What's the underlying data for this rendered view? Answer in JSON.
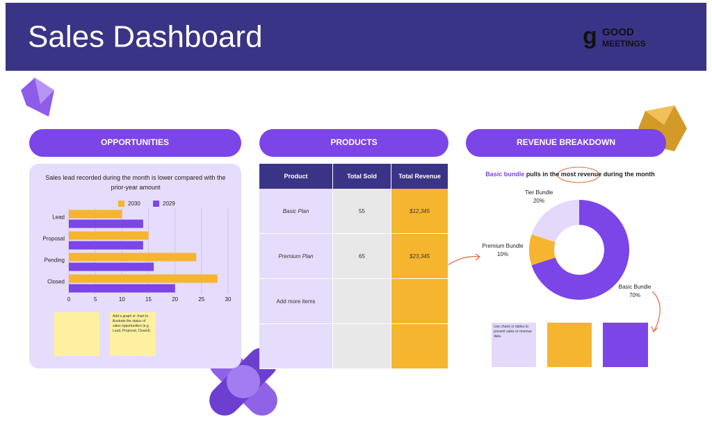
{
  "header": {
    "title": "Sales Dashboard",
    "logo": {
      "mark": "g",
      "lines": [
        "GOOD",
        "MEETINGS"
      ]
    }
  },
  "sections": [
    "OPPORTUNITIES",
    "PRODUCTS",
    "REVENUE BREAKDOWN"
  ],
  "chart_data": [
    {
      "type": "hbar",
      "title": "Sales lead recorded during the month is lower compared with the prior-year amount",
      "categories": [
        "Lead",
        "Proposal",
        "Pending",
        "Closed"
      ],
      "series": [
        {
          "name": "2030",
          "color": "#f6b52e",
          "values": [
            10,
            15,
            24,
            28
          ]
        },
        {
          "name": "2029",
          "color": "#7b45e8",
          "values": [
            14,
            14,
            16,
            20
          ]
        }
      ],
      "xlim": [
        0,
        30
      ],
      "xticks": [
        0,
        5,
        10,
        15,
        20,
        25,
        30
      ],
      "grid": true
    },
    {
      "type": "donut",
      "title_parts": [
        "Basic bundle",
        " pulls in the ",
        "most revenue",
        " during the month"
      ],
      "categories": [
        "Basic Bundle",
        "Premium Bundle",
        "Tier Bundle"
      ],
      "values": [
        70,
        10,
        20
      ],
      "value_labels": [
        "70%",
        "10%",
        "20%"
      ],
      "colors": [
        "#7b45e8",
        "#f6b52e",
        "#e4d9fb"
      ]
    }
  ],
  "table": {
    "headers": [
      "Product",
      "Total Sold",
      "Total Revenue"
    ],
    "rows": [
      [
        "Basic Plan",
        55,
        "$12,345"
      ],
      [
        "Premium Plan",
        65,
        "$23,345"
      ],
      [
        "Add more items"
      ]
    ]
  },
  "notes": [
    "Add a graph or chart to illustrate the status of sales opportunities (e.g. Lead, Proposal, Closed).",
    "Use charts or tables to present sales or revenue data."
  ]
}
